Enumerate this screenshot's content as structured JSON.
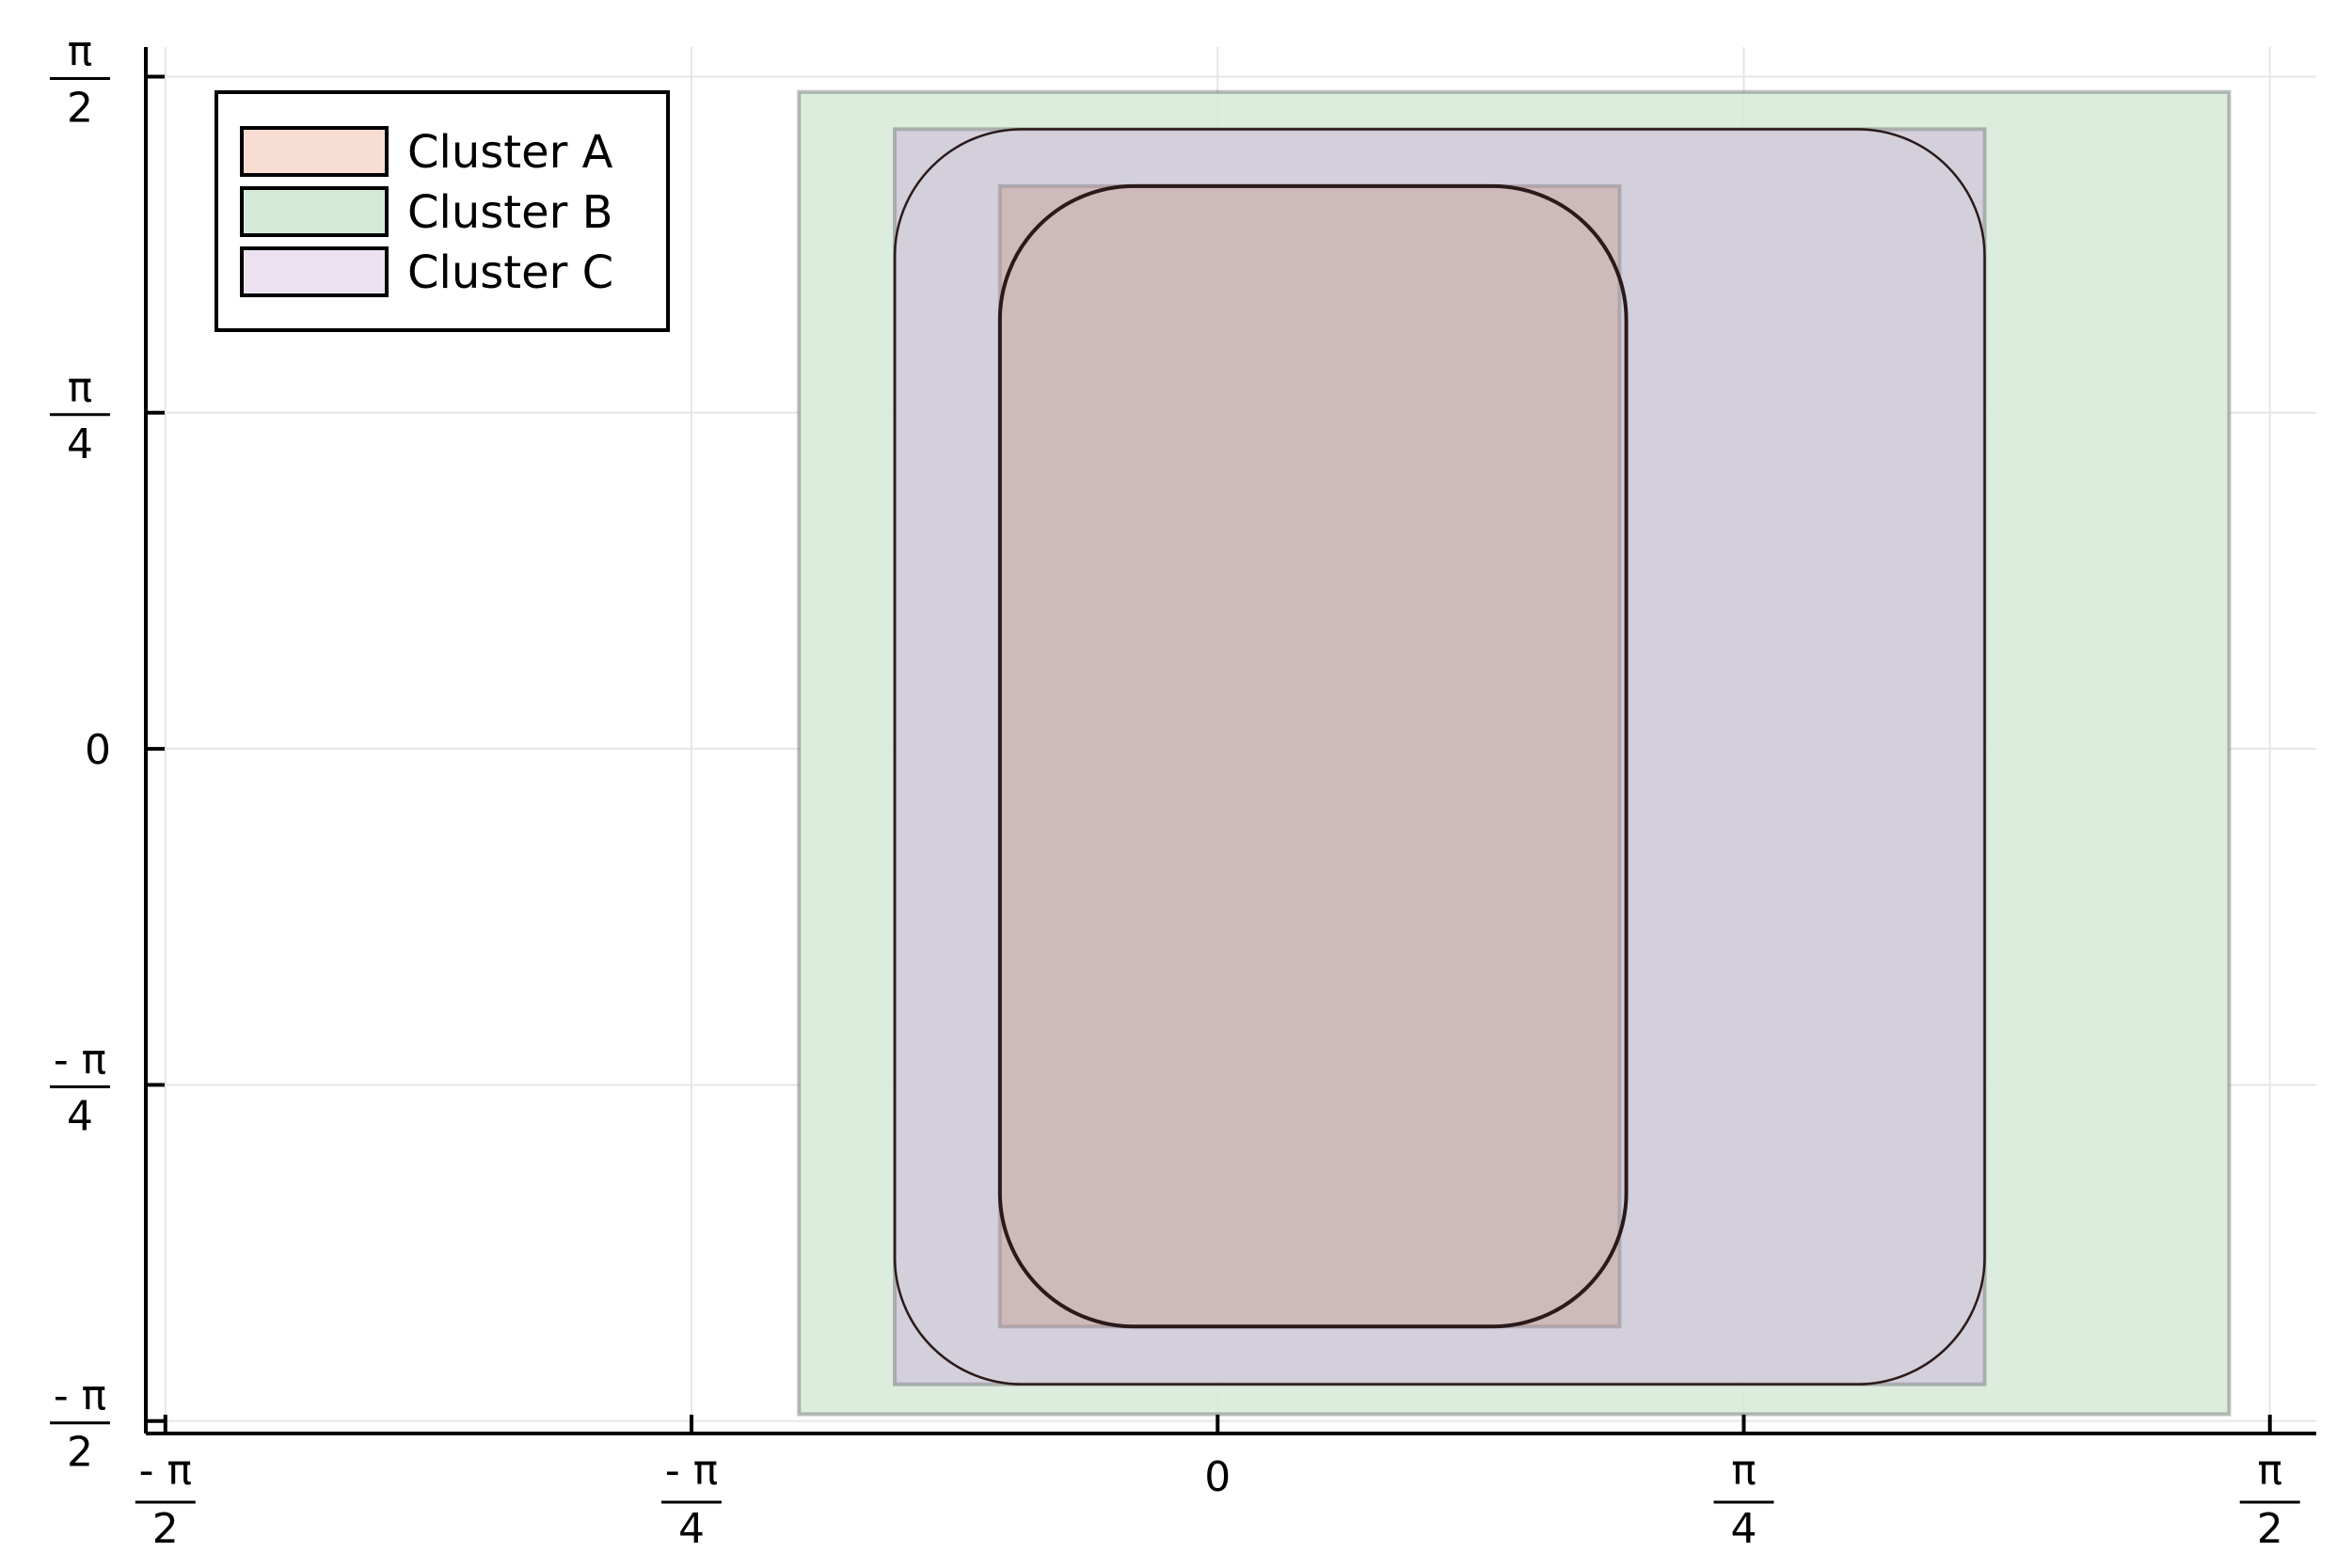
{
  "chart_data": {
    "type": "area",
    "title": "",
    "xlabel": "",
    "ylabel": "",
    "xlim": [
      -1.6,
      1.64
    ],
    "ylim": [
      -1.6,
      1.64
    ],
    "grid": true,
    "legend_position": "top-left",
    "x_ticks": [
      {
        "value": -1.5708,
        "numerator": "- π",
        "denominator": "2"
      },
      {
        "value": -0.7854,
        "numerator": "- π",
        "denominator": "4"
      },
      {
        "value": 0,
        "label": "0"
      },
      {
        "value": 0.7854,
        "numerator": "π",
        "denominator": "4"
      },
      {
        "value": 1.5708,
        "numerator": "π",
        "denominator": "2"
      }
    ],
    "y_ticks": [
      {
        "value": -1.5708,
        "numerator": "- π",
        "denominator": "2"
      },
      {
        "value": -0.7854,
        "numerator": "- π",
        "denominator": "4"
      },
      {
        "value": 0,
        "label": "0"
      },
      {
        "value": 0.7854,
        "numerator": "π",
        "denominator": "4"
      },
      {
        "value": 1.5708,
        "numerator": "π",
        "denominator": "2"
      }
    ],
    "series": [
      {
        "name": "Cluster A",
        "color": "#f8ddd3",
        "box": {
          "xmin": -0.325,
          "xmax": 0.6,
          "ymin": -1.35,
          "ymax": 1.315
        },
        "curve": {
          "xmin": -0.325,
          "xmax": 0.61,
          "ymin": -1.35,
          "ymax": 1.315,
          "corner": 0.2
        }
      },
      {
        "name": "Cluster B",
        "color": "#d6ead8",
        "box": {
          "xmin": -0.625,
          "xmax": 1.51,
          "ymin": -1.555,
          "ymax": 1.535
        },
        "curve": null
      },
      {
        "name": "Cluster C",
        "color": "#ece2f2",
        "box": {
          "xmin": -0.482,
          "xmax": 1.145,
          "ymin": -1.485,
          "ymax": 1.448
        },
        "curve": {
          "xmin": -0.482,
          "xmax": 1.145,
          "ymin": -1.485,
          "ymax": 1.448,
          "corner": 0.19
        }
      }
    ]
  }
}
